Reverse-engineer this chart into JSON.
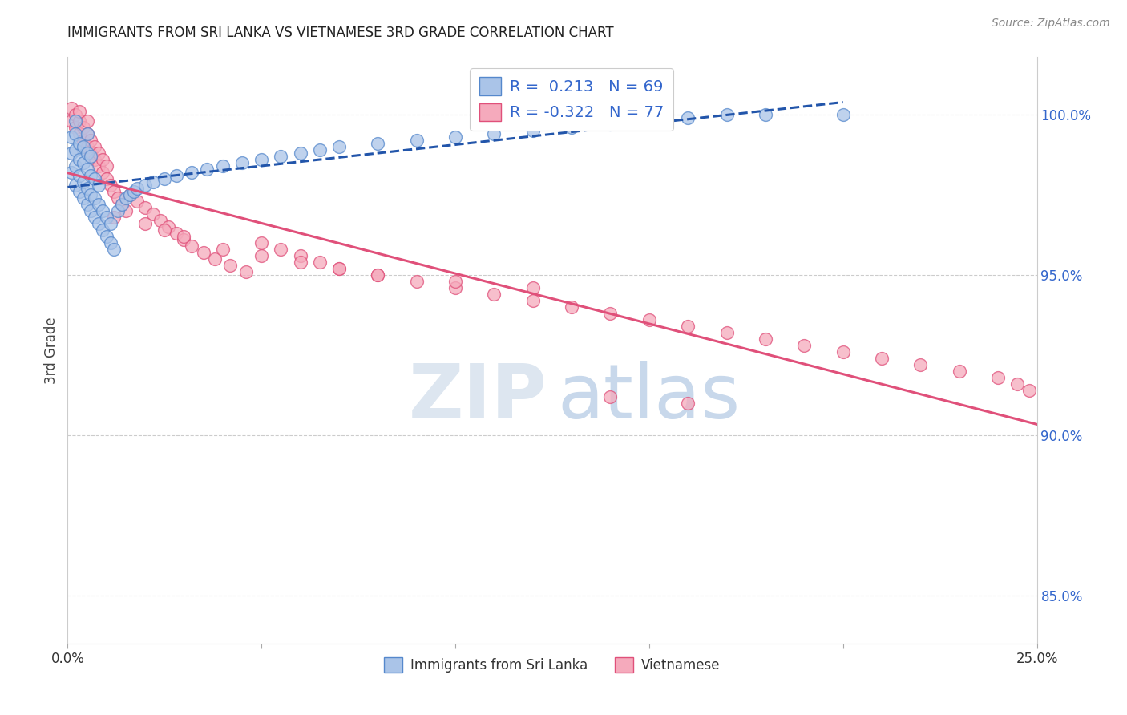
{
  "title": "IMMIGRANTS FROM SRI LANKA VS VIETNAMESE 3RD GRADE CORRELATION CHART",
  "source": "Source: ZipAtlas.com",
  "ylabel": "3rd Grade",
  "x_range": [
    0.0,
    0.25
  ],
  "y_range": [
    0.835,
    1.018
  ],
  "y_ticks": [
    0.85,
    0.9,
    0.95,
    1.0
  ],
  "y_tick_labels": [
    "85.0%",
    "90.0%",
    "95.0%",
    "100.0%"
  ],
  "x_ticks": [
    0.0,
    0.05,
    0.1,
    0.15,
    0.2,
    0.25
  ],
  "legend_label1": "Immigrants from Sri Lanka",
  "legend_label2": "Vietnamese",
  "sri_lanka_color": "#aac4e8",
  "sri_lanka_edge": "#5588cc",
  "vietnamese_color": "#f5aabc",
  "vietnamese_edge": "#e0507a",
  "trendline_sri_color": "#2255aa",
  "trendline_viet_color": "#e0507a",
  "R_sri": 0.213,
  "N_sri": 69,
  "R_viet": -0.322,
  "N_viet": 77,
  "grid_color": "#cccccc",
  "sri_lanka_x": [
    0.001,
    0.001,
    0.001,
    0.002,
    0.002,
    0.002,
    0.002,
    0.002,
    0.003,
    0.003,
    0.003,
    0.003,
    0.004,
    0.004,
    0.004,
    0.004,
    0.005,
    0.005,
    0.005,
    0.005,
    0.005,
    0.006,
    0.006,
    0.006,
    0.006,
    0.007,
    0.007,
    0.007,
    0.008,
    0.008,
    0.008,
    0.009,
    0.009,
    0.01,
    0.01,
    0.011,
    0.011,
    0.012,
    0.013,
    0.014,
    0.015,
    0.016,
    0.017,
    0.018,
    0.02,
    0.022,
    0.025,
    0.028,
    0.032,
    0.036,
    0.04,
    0.045,
    0.05,
    0.055,
    0.06,
    0.065,
    0.07,
    0.08,
    0.09,
    0.1,
    0.11,
    0.12,
    0.13,
    0.14,
    0.15,
    0.16,
    0.17,
    0.18,
    0.2
  ],
  "sri_lanka_y": [
    0.982,
    0.988,
    0.993,
    0.978,
    0.984,
    0.989,
    0.994,
    0.998,
    0.976,
    0.981,
    0.986,
    0.991,
    0.974,
    0.979,
    0.985,
    0.99,
    0.972,
    0.977,
    0.983,
    0.988,
    0.994,
    0.97,
    0.975,
    0.981,
    0.987,
    0.968,
    0.974,
    0.98,
    0.966,
    0.972,
    0.978,
    0.964,
    0.97,
    0.962,
    0.968,
    0.96,
    0.966,
    0.958,
    0.97,
    0.972,
    0.974,
    0.975,
    0.976,
    0.977,
    0.978,
    0.979,
    0.98,
    0.981,
    0.982,
    0.983,
    0.984,
    0.985,
    0.986,
    0.987,
    0.988,
    0.989,
    0.99,
    0.991,
    0.992,
    0.993,
    0.994,
    0.995,
    0.996,
    0.997,
    0.998,
    0.999,
    1.0,
    1.0,
    1.0
  ],
  "vietnamese_x": [
    0.001,
    0.001,
    0.002,
    0.002,
    0.003,
    0.003,
    0.003,
    0.004,
    0.004,
    0.005,
    0.005,
    0.005,
    0.006,
    0.006,
    0.007,
    0.007,
    0.008,
    0.008,
    0.009,
    0.009,
    0.01,
    0.01,
    0.011,
    0.012,
    0.013,
    0.014,
    0.015,
    0.016,
    0.018,
    0.02,
    0.022,
    0.024,
    0.026,
    0.028,
    0.03,
    0.032,
    0.035,
    0.038,
    0.042,
    0.046,
    0.05,
    0.055,
    0.06,
    0.065,
    0.07,
    0.08,
    0.09,
    0.1,
    0.11,
    0.12,
    0.13,
    0.14,
    0.15,
    0.16,
    0.17,
    0.18,
    0.19,
    0.2,
    0.21,
    0.22,
    0.23,
    0.24,
    0.245,
    0.248,
    0.012,
    0.02,
    0.025,
    0.03,
    0.04,
    0.05,
    0.06,
    0.07,
    0.08,
    0.1,
    0.12,
    0.14,
    0.16
  ],
  "vietnamese_y": [
    0.998,
    1.002,
    0.996,
    1.0,
    0.994,
    0.998,
    1.001,
    0.992,
    0.996,
    0.99,
    0.994,
    0.998,
    0.988,
    0.992,
    0.986,
    0.99,
    0.984,
    0.988,
    0.982,
    0.986,
    0.98,
    0.984,
    0.978,
    0.976,
    0.974,
    0.972,
    0.97,
    0.975,
    0.973,
    0.971,
    0.969,
    0.967,
    0.965,
    0.963,
    0.961,
    0.959,
    0.957,
    0.955,
    0.953,
    0.951,
    0.96,
    0.958,
    0.956,
    0.954,
    0.952,
    0.95,
    0.948,
    0.946,
    0.944,
    0.942,
    0.94,
    0.938,
    0.936,
    0.934,
    0.932,
    0.93,
    0.928,
    0.926,
    0.924,
    0.922,
    0.92,
    0.918,
    0.916,
    0.914,
    0.968,
    0.966,
    0.964,
    0.962,
    0.958,
    0.956,
    0.954,
    0.952,
    0.95,
    0.948,
    0.946,
    0.912,
    0.91
  ]
}
